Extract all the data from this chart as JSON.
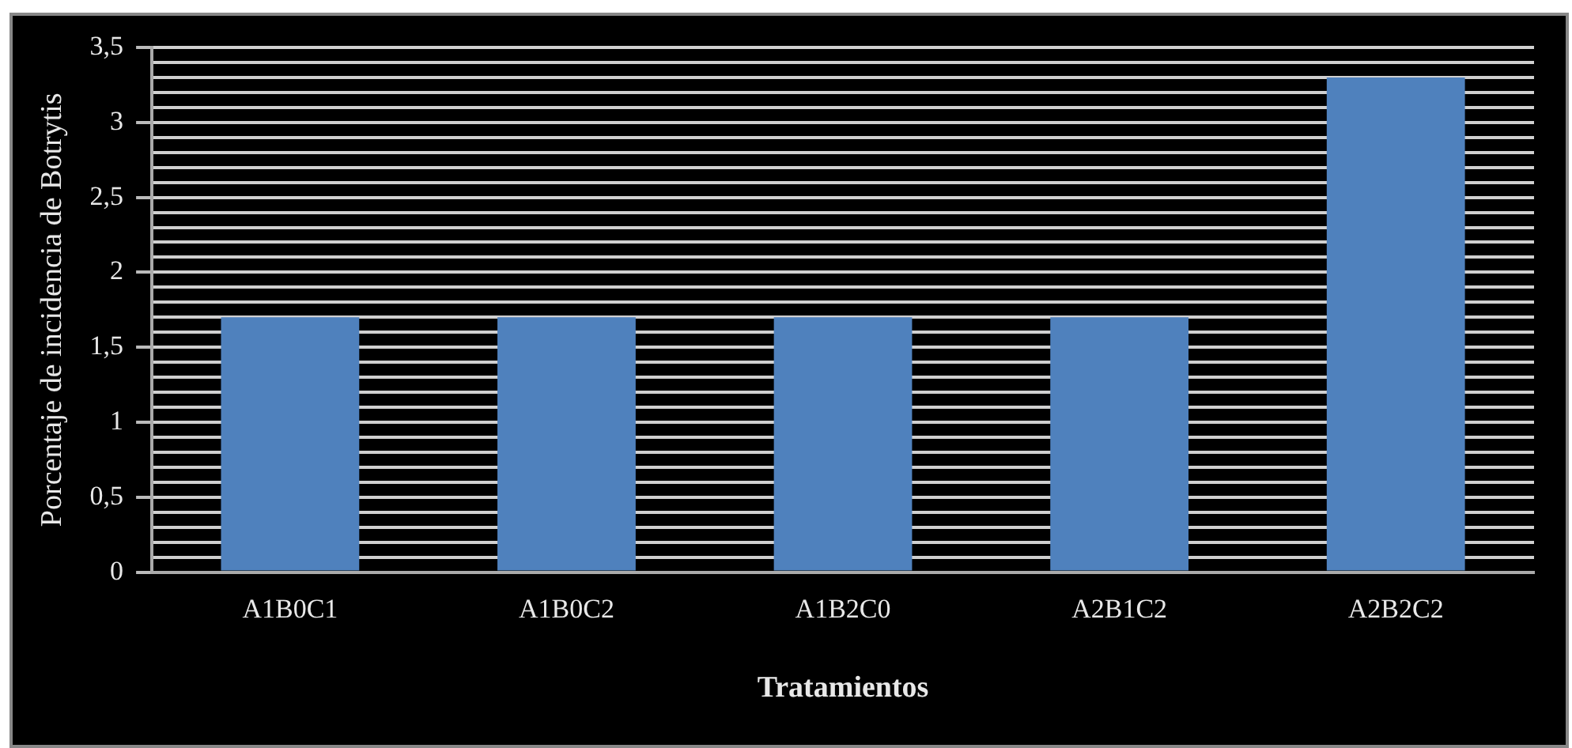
{
  "chart_data": {
    "type": "bar",
    "xlabel": "Tratamientos",
    "ylabel": "Porcentaje de incidencia de Botrytis",
    "categories": [
      "A1B0C1",
      "A1B0C2",
      "A1B2C0",
      "A2B1C2",
      "A2B2C2"
    ],
    "values": [
      1.7,
      1.7,
      1.7,
      1.7,
      3.3
    ],
    "color": "#4f81bd",
    "ylim": [
      0,
      3.5
    ],
    "yticks": [
      {
        "value": 0,
        "label": "0"
      },
      {
        "value": 0.1,
        "label": null
      },
      {
        "value": 0.2,
        "label": null
      },
      {
        "value": 0.3,
        "label": null
      },
      {
        "value": 0.4,
        "label": null
      },
      {
        "value": 0.5,
        "label": "0,5"
      },
      {
        "value": 0.6,
        "label": null
      },
      {
        "value": 0.7,
        "label": null
      },
      {
        "value": 0.8,
        "label": null
      },
      {
        "value": 0.9,
        "label": null
      },
      {
        "value": 1,
        "label": "1"
      },
      {
        "value": 1.1,
        "label": null
      },
      {
        "value": 1.2,
        "label": null
      },
      {
        "value": 1.3,
        "label": null
      },
      {
        "value": 1.4,
        "label": null
      },
      {
        "value": 1.5,
        "label": "1,5"
      },
      {
        "value": 1.6,
        "label": null
      },
      {
        "value": 1.7,
        "label": null
      },
      {
        "value": 1.8,
        "label": null
      },
      {
        "value": 1.9,
        "label": null
      },
      {
        "value": 2,
        "label": "2"
      },
      {
        "value": 2.1,
        "label": null
      },
      {
        "value": 2.2,
        "label": null
      },
      {
        "value": 2.3,
        "label": null
      },
      {
        "value": 2.4,
        "label": null
      },
      {
        "value": 2.5,
        "label": "2,5"
      },
      {
        "value": 2.6,
        "label": null
      },
      {
        "value": 2.7,
        "label": null
      },
      {
        "value": 2.8,
        "label": null
      },
      {
        "value": 2.9,
        "label": null
      },
      {
        "value": 3,
        "label": "3"
      },
      {
        "value": 3.1,
        "label": null
      },
      {
        "value": 3.2,
        "label": null
      },
      {
        "value": 3.3,
        "label": null
      },
      {
        "value": 3.4,
        "label": null
      },
      {
        "value": 3.5,
        "label": "3,5"
      }
    ],
    "grid": "y",
    "legend": false
  }
}
